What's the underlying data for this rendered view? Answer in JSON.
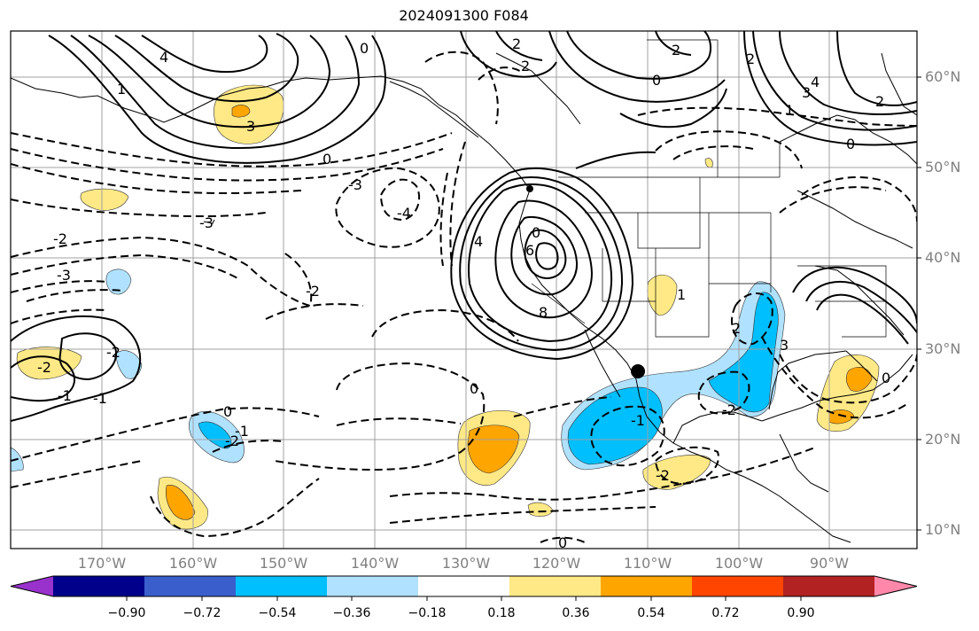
{
  "title": "2024091300 F084",
  "lat_labels": [
    "60°N",
    "50°N",
    "40°N",
    "30°N",
    "20°N",
    "10°N"
  ],
  "lon_labels": [
    "170°W",
    "160°W",
    "150°W",
    "140°W",
    "130°W",
    "120°W",
    "110°W",
    "100°W",
    "90°W"
  ],
  "colorbar": {
    "tick_labels": [
      "−0.90",
      "−0.72",
      "−0.54",
      "−0.36",
      "−0.18",
      "0.18",
      "0.36",
      "0.54",
      "0.72",
      "0.90"
    ],
    "colors": [
      "#9932cc",
      "#00008b",
      "#3a5fcd",
      "#00bfff",
      "#b0e2ff",
      "#ffffff",
      "#ffe986",
      "#ffa500",
      "#ff4500",
      "#b22222",
      "#ff88aa"
    ]
  },
  "contour_labels": [
    {
      "id": "c1",
      "text": "0"
    },
    {
      "id": "c2",
      "text": "2"
    },
    {
      "id": "c3",
      "text": "2"
    },
    {
      "id": "c4",
      "text": "2"
    },
    {
      "id": "c5",
      "text": "0"
    },
    {
      "id": "c6",
      "text": "2"
    },
    {
      "id": "c7",
      "text": "4"
    },
    {
      "id": "c8",
      "text": "3"
    },
    {
      "id": "c9",
      "text": "1"
    },
    {
      "id": "c10",
      "text": "2"
    },
    {
      "id": "c11",
      "text": "4"
    },
    {
      "id": "c12",
      "text": "1"
    },
    {
      "id": "c13",
      "text": "3"
    },
    {
      "id": "c14",
      "text": "-3"
    },
    {
      "id": "c15",
      "text": "-2"
    },
    {
      "id": "c16",
      "text": "0"
    },
    {
      "id": "c17",
      "text": "-3"
    },
    {
      "id": "c18",
      "text": "-4"
    },
    {
      "id": "c19",
      "text": "-3"
    },
    {
      "id": "c20",
      "text": "-2"
    },
    {
      "id": "c21",
      "text": "0"
    },
    {
      "id": "c22",
      "text": "6"
    },
    {
      "id": "c23",
      "text": "8"
    },
    {
      "id": "c24",
      "text": "4"
    },
    {
      "id": "c25",
      "text": "1"
    },
    {
      "id": "c26",
      "text": "2"
    },
    {
      "id": "c27",
      "text": "-2"
    },
    {
      "id": "c28",
      "text": "-1"
    },
    {
      "id": "c29",
      "text": "-2"
    },
    {
      "id": "c30",
      "text": "-1"
    },
    {
      "id": "c31",
      "text": "0"
    },
    {
      "id": "c32",
      "text": "-1"
    },
    {
      "id": "c33",
      "text": "-2"
    },
    {
      "id": "c34",
      "text": "0"
    },
    {
      "id": "c35",
      "text": "-1"
    },
    {
      "id": "c36",
      "text": "-2"
    },
    {
      "id": "c37",
      "text": "0"
    },
    {
      "id": "c38",
      "text": "-2"
    },
    {
      "id": "c39",
      "text": "3"
    },
    {
      "id": "c40",
      "text": "0"
    },
    {
      "id": "c41",
      "text": "0"
    }
  ]
}
